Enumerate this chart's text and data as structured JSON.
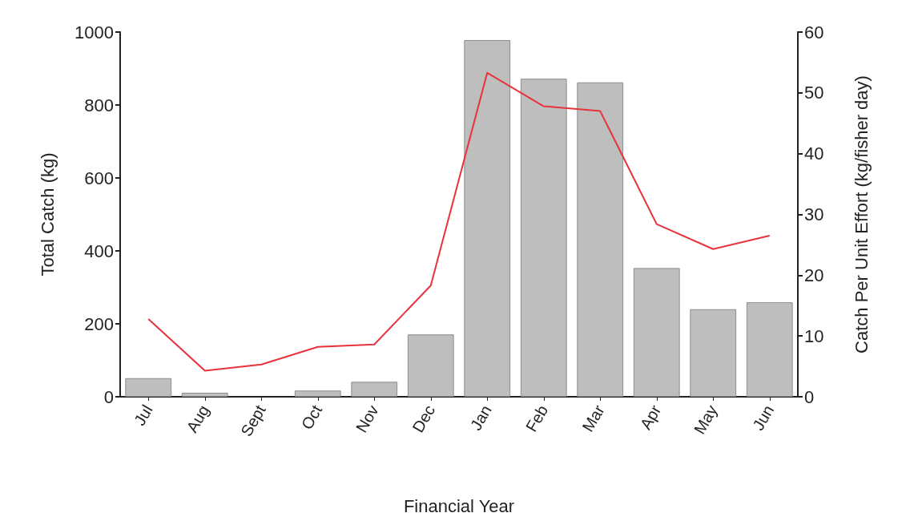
{
  "chart_data": {
    "type": "bar",
    "xlabel": "Financial Year",
    "ylabel": "Total Catch (kg)",
    "y2label": "Catch Per Unit Effort (kg/fisher day)",
    "categories": [
      "Jul",
      "Aug",
      "Sept",
      "Oct",
      "Nov",
      "Dec",
      "Jan",
      "Feb",
      "Mar",
      "Apr",
      "May",
      "Jun"
    ],
    "series": [
      {
        "color": "#bebebe",
        "values": [
          51,
          11,
          0,
          17,
          41,
          171,
          978,
          872,
          862,
          353,
          240,
          259
        ]
      },
      {
        "type": "line",
        "axis": "y2",
        "color": "#e8333c",
        "values": [
          12.8,
          4.3,
          5.3,
          8.2,
          8.6,
          18.3,
          53.3,
          47.8,
          47.0,
          28.4,
          24.3,
          26.5
        ]
      }
    ],
    "ylim": [
      0,
      1000
    ],
    "yticks": [
      0,
      200,
      400,
      600,
      800,
      1000
    ],
    "y2lim": [
      0,
      60
    ],
    "y2ticks": [
      0,
      10,
      20,
      30,
      40,
      50,
      60
    ],
    "grid": false,
    "marker": "none",
    "line_style": "solid"
  }
}
